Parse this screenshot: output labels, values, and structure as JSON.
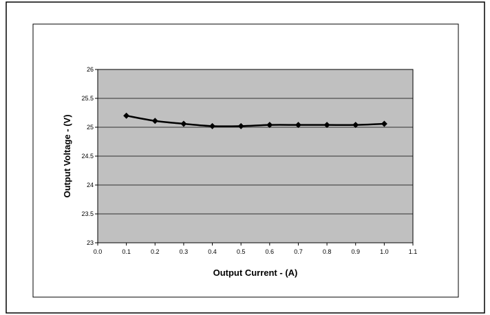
{
  "colors": {
    "plot_background": "#c0c0c0",
    "gridline": "#000000",
    "series_line": "#000000",
    "page_border": "#000000",
    "chart_border": "#000000"
  },
  "chart_data": {
    "type": "line",
    "title": "",
    "xlabel": "Output Current - (A)",
    "ylabel": "Output Voltage - (V)",
    "xlim": [
      0.0,
      1.1
    ],
    "ylim": [
      23,
      26
    ],
    "x_ticks": [
      "0.0",
      "0.1",
      "0.2",
      "0.3",
      "0.4",
      "0.5",
      "0.6",
      "0.7",
      "0.8",
      "0.9",
      "1.0",
      "1.1"
    ],
    "y_ticks": [
      "23",
      "23.5",
      "24",
      "24.5",
      "25",
      "25.5",
      "26"
    ],
    "grid": "horizontal major gridlines",
    "legend": "none",
    "marker": "diamond",
    "smoothed": true,
    "series": [
      {
        "x": [
          0.1,
          0.2,
          0.3,
          0.4,
          0.5,
          0.6,
          0.7,
          0.8,
          0.9,
          1.0
        ],
        "y": [
          25.2,
          25.11,
          25.06,
          25.02,
          25.02,
          25.04,
          25.04,
          25.04,
          25.04,
          25.06
        ]
      }
    ]
  }
}
